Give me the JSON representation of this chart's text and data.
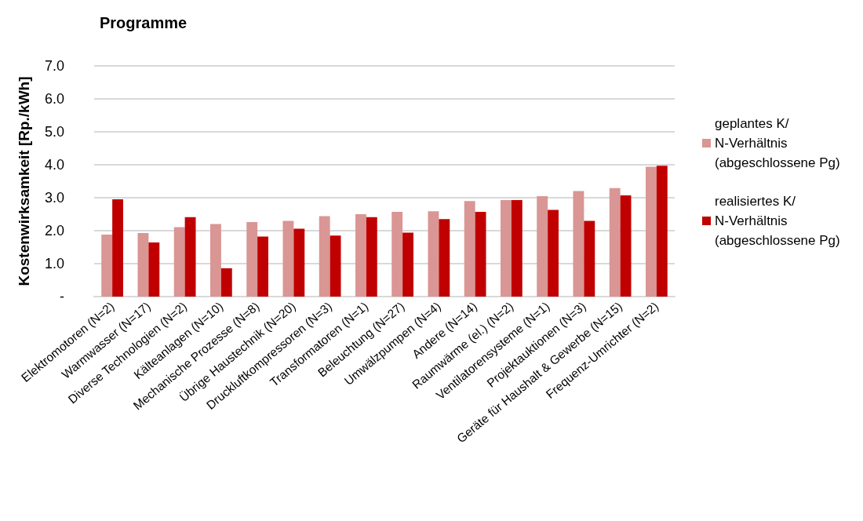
{
  "chart_data": {
    "type": "bar",
    "title": "Programme",
    "ylabel": "Kostenwirksamkeit [Rp./kWh]",
    "categories": [
      "Elektromotoren (N=2)",
      "Warmwasser (N=17)",
      "Diverse Technologien (N=2)",
      "Kälteanlagen (N=10)",
      "Mechanische Prozesse (N=8)",
      "Übrige Haustechnik (N=20)",
      "Druckluftkompressoren (N=3)",
      "Transformatoren (N=1)",
      "Beleuchtung (N=27)",
      "Umwälzpumpen (N=4)",
      "Andere (N=14)",
      "Raumwärme (el.) (N=2)",
      "Ventilatorensysteme (N=1)",
      "Projektauktionen (N=3)",
      "Geräte für Haushalt & Gewerbe (N=15)",
      "Frequenz-Umrichter (N=2)"
    ],
    "series": [
      {
        "name": "geplantes K/N-Verhältnis (abgeschlossene Pg)",
        "color": "#d99694",
        "values": [
          1.88,
          1.93,
          2.11,
          2.2,
          2.26,
          2.3,
          2.44,
          2.5,
          2.57,
          2.59,
          2.9,
          2.93,
          3.05,
          3.2,
          3.29,
          3.94
        ]
      },
      {
        "name": "realisiertes K/N-Verhältnis (abgeschlossene Pg)",
        "color": "#c00000",
        "values": [
          2.95,
          1.64,
          2.41,
          0.86,
          1.82,
          2.06,
          1.85,
          2.41,
          1.94,
          2.35,
          2.57,
          2.93,
          2.63,
          2.3,
          3.07,
          3.97
        ]
      }
    ],
    "ylim": [
      0,
      7
    ],
    "yticks": [
      {
        "value": 0,
        "label": "-"
      },
      {
        "value": 1,
        "label": "1.0"
      },
      {
        "value": 2,
        "label": "2.0"
      },
      {
        "value": 3,
        "label": "3.0"
      },
      {
        "value": 4,
        "label": "4.0"
      },
      {
        "value": 5,
        "label": "5.0"
      },
      {
        "value": 6,
        "label": "6.0"
      },
      {
        "value": 7,
        "label": "7.0"
      }
    ],
    "grid": "y",
    "legend": "right"
  }
}
